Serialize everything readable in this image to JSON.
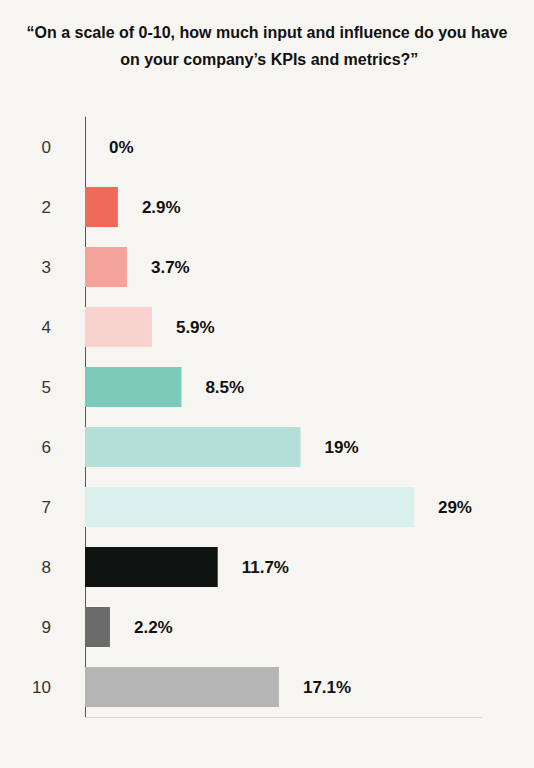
{
  "chart_data": {
    "type": "bar",
    "title": "“On a scale of 0-10, how much input and influence do you have on your company’s KPIs and metrics?”",
    "orientation": "horizontal",
    "categories": [
      "0",
      "2",
      "3",
      "4",
      "5",
      "6",
      "7",
      "8",
      "9",
      "10"
    ],
    "values": [
      0,
      2.9,
      3.7,
      5.9,
      8.5,
      19,
      29,
      11.7,
      2.2,
      17.1
    ],
    "value_labels": [
      "0%",
      "2.9%",
      "3.7%",
      "5.9%",
      "8.5%",
      "19%",
      "29%",
      "11.7%",
      "2.2%",
      "17.1%"
    ],
    "colors": [
      "#ef6a5a",
      "#ef6a5a",
      "#f4a39a",
      "#f8d3cd",
      "#7ecab9",
      "#b3dfd6",
      "#d9f0ec",
      "#0d1412",
      "#6b6b6b",
      "#b5b5b5"
    ],
    "xlim": [
      0,
      35
    ],
    "grid": false,
    "data_labels": true,
    "tick_labels": "y"
  }
}
